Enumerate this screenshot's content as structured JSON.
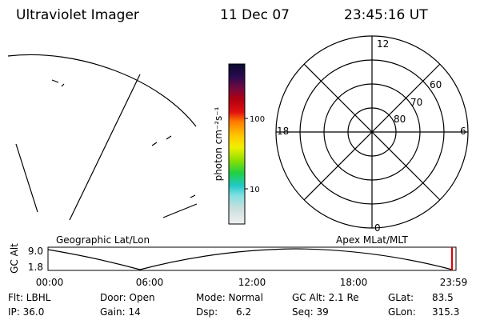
{
  "header": {
    "title": "Ultraviolet Imager",
    "date": "11 Dec 07",
    "time": "23:45:16 UT"
  },
  "colorbar": {
    "unit_label": "photon cm⁻²s⁻¹",
    "ticks": [
      "100",
      "10"
    ]
  },
  "polar": {
    "mlt_labels": [
      "12",
      "6",
      "18",
      "0"
    ],
    "lat_labels": [
      "60",
      "70",
      "80"
    ]
  },
  "timeline": {
    "left_label": "Geographic Lat/Lon",
    "right_label": "Apex MLat/MLT",
    "axis_label": "GC Alt",
    "y_labels": [
      "9.0",
      "1.8"
    ],
    "x_labels": [
      "00:00",
      "06:00",
      "12:00",
      "18:00",
      "23:59"
    ]
  },
  "footer": {
    "rows": [
      [
        "Flt: LBHL",
        "Door: Open",
        "Mode: Normal",
        "GC Alt: 2.1 Re",
        "GLat:",
        "83.5"
      ],
      [
        "IP: 36.0",
        "Gain: 14",
        "Dsp:      6.2",
        "Seq: 39",
        "GLon:",
        "315.3"
      ]
    ]
  }
}
